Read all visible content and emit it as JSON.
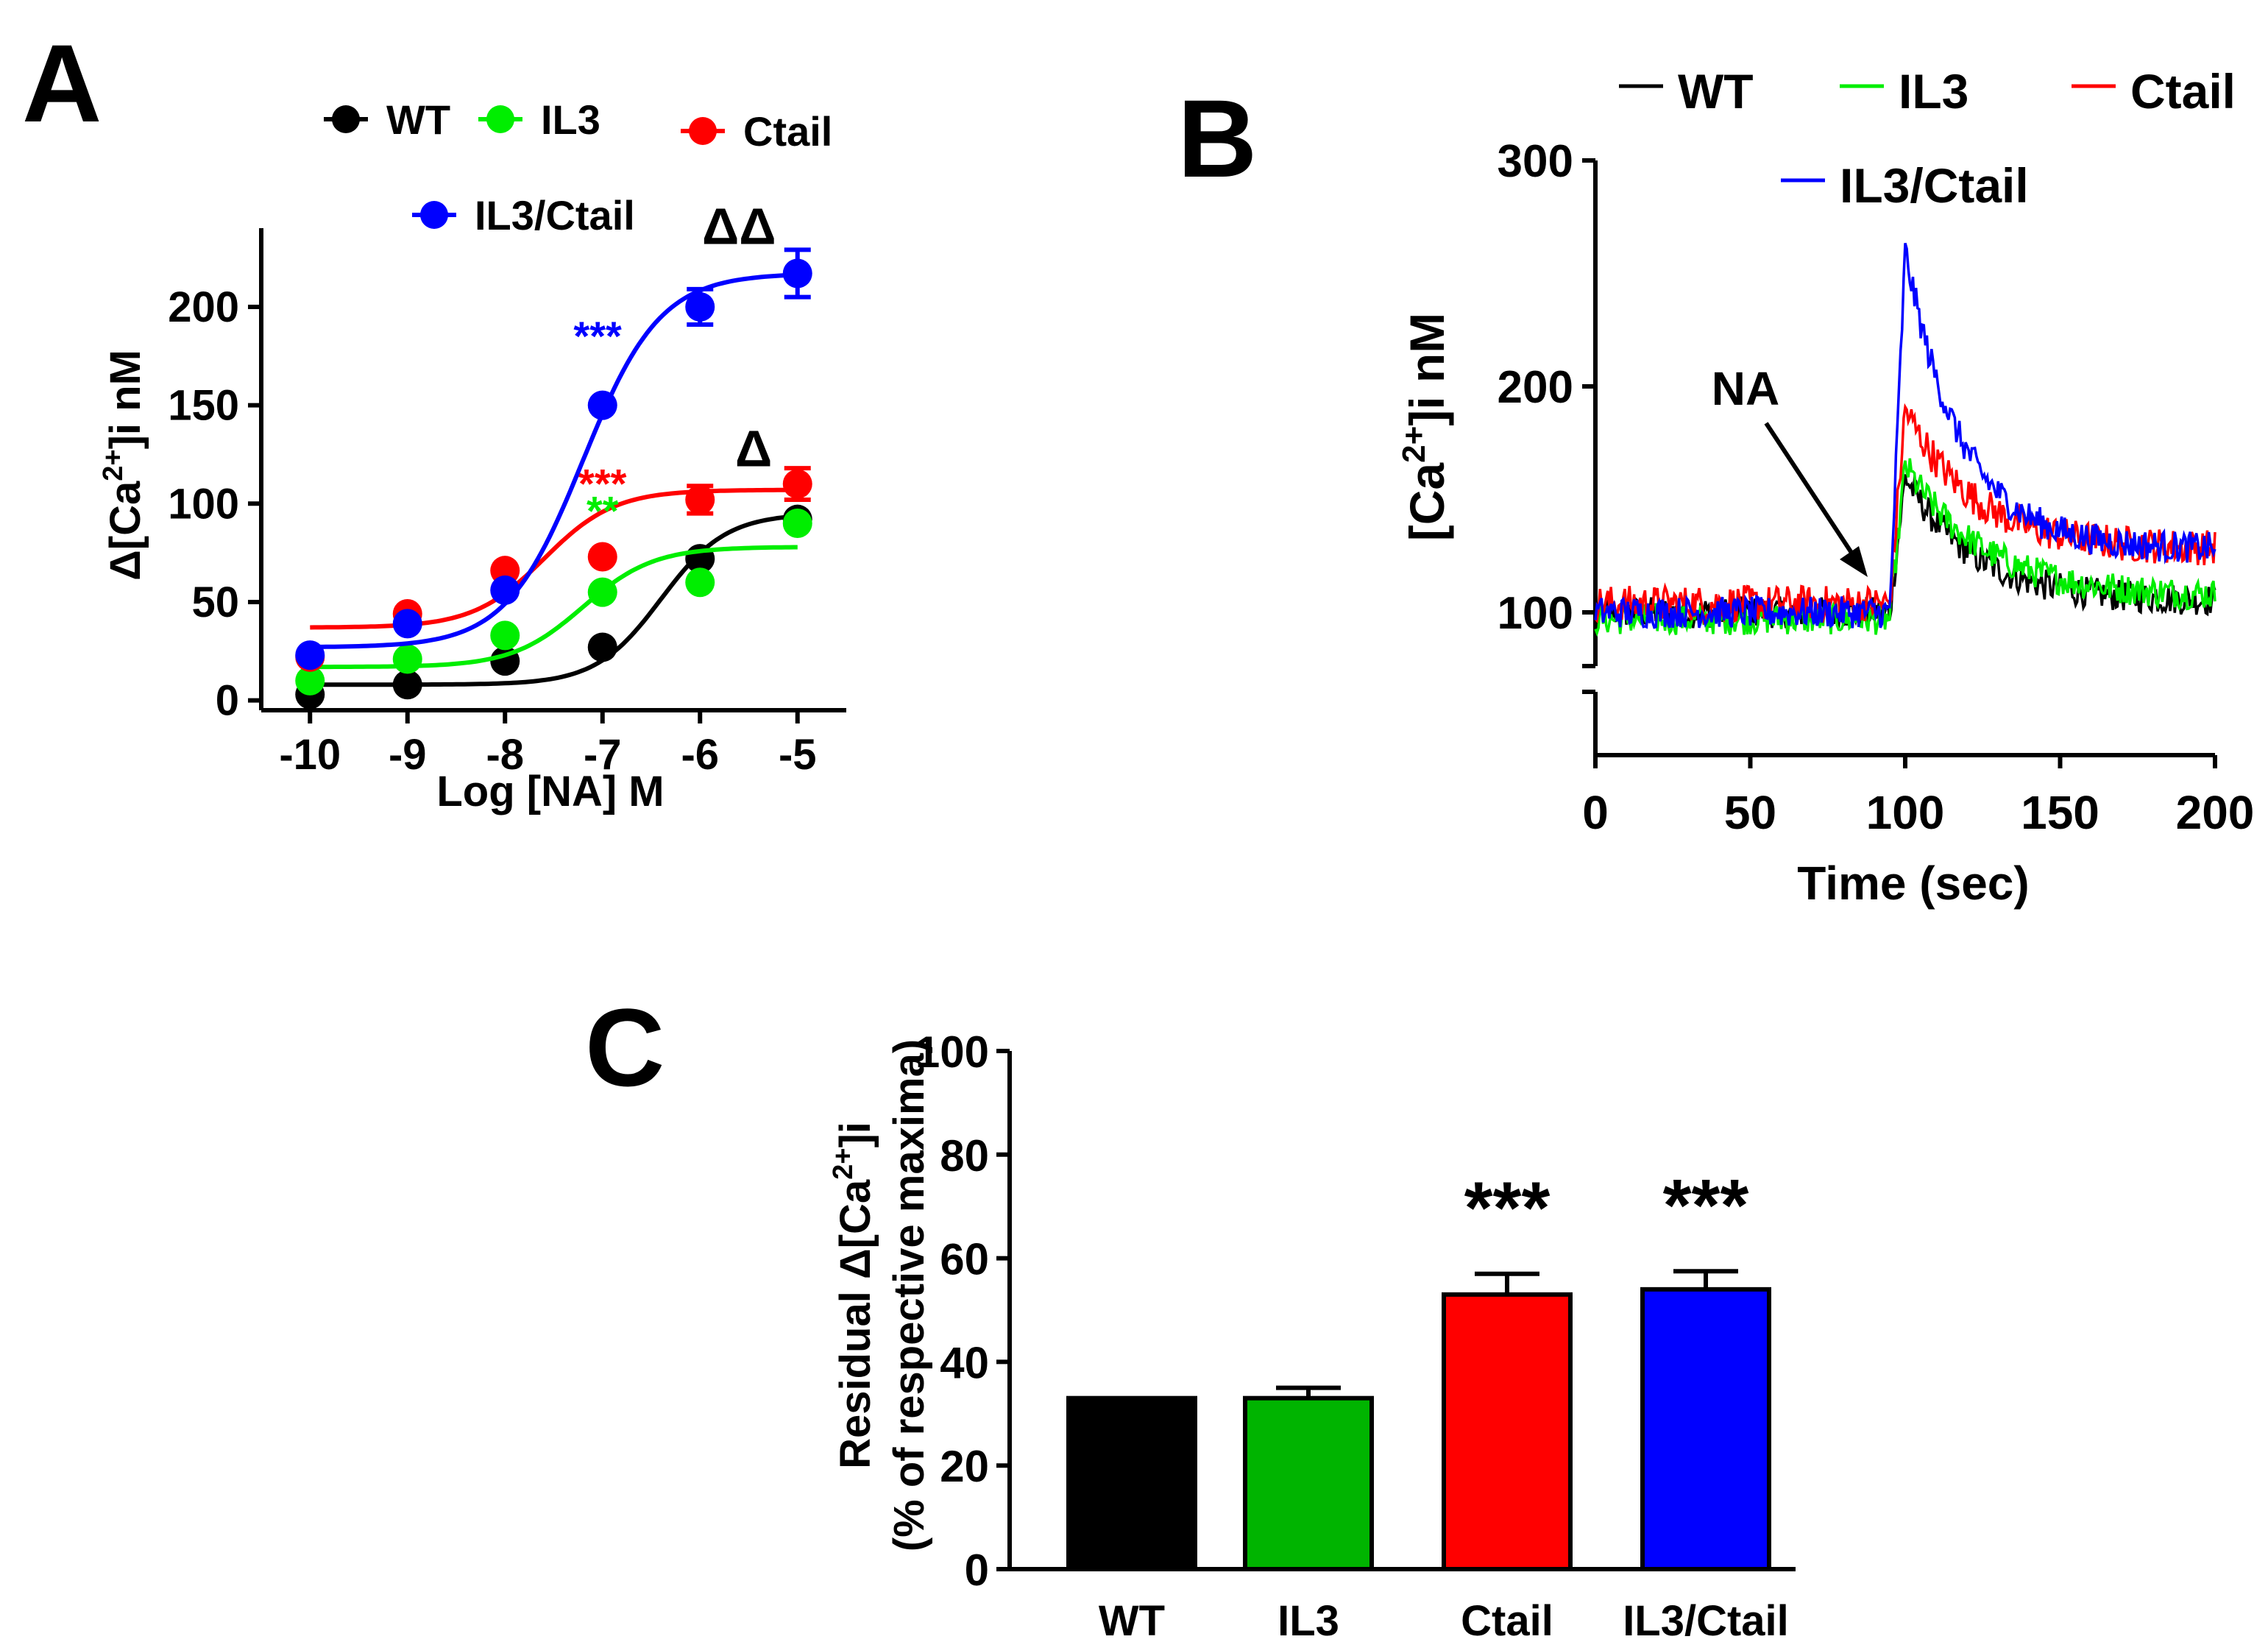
{
  "figure": {
    "panels": [
      "A",
      "B",
      "C"
    ]
  },
  "chart_data": [
    {
      "panel": "A",
      "type": "scatter",
      "fit": "sigmoidal concentration-response",
      "xlabel": "Log [NA] M",
      "ylabel": "Δ[Ca2+]i nM",
      "ylabel_parts": {
        "pre": "Δ[Ca",
        "sup": "2+",
        "post": "]i nM"
      },
      "xlim": [
        -10.5,
        -4.5
      ],
      "ylim": [
        -5,
        240
      ],
      "xticks": [
        -10,
        -9,
        -8,
        -7,
        -6,
        -5
      ],
      "xtick_labels": [
        "-10",
        "-9",
        "-8",
        "-7",
        "-6",
        "-5"
      ],
      "yticks": [
        0,
        50,
        100,
        150,
        200
      ],
      "ytick_labels": [
        "0",
        "50",
        "100",
        "150",
        "200"
      ],
      "series": [
        {
          "name": "WT",
          "color": "#000000",
          "x": [
            -10,
            -9,
            -8,
            -7,
            -6,
            -5
          ],
          "y": [
            3,
            8,
            20,
            27,
            72,
            92
          ],
          "err": [
            0,
            0,
            0,
            0,
            0,
            0
          ],
          "fit": {
            "bottom": 8,
            "top": 95,
            "logec50": -6.4,
            "hill": 1.3
          }
        },
        {
          "name": "IL3",
          "color": "#00ee00",
          "x": [
            -10,
            -9,
            -8,
            -7,
            -6,
            -5
          ],
          "y": [
            10,
            21,
            33,
            55,
            60,
            90
          ],
          "err": [
            0,
            0,
            0,
            0,
            0,
            0
          ],
          "fit": {
            "bottom": 17,
            "top": 78,
            "logec50": -7.2,
            "hill": 1.2
          }
        },
        {
          "name": "Ctail",
          "color": "#ff0000",
          "x": [
            -10,
            -9,
            -8,
            -7,
            -6,
            -5
          ],
          "y": [
            22,
            44,
            66,
            73,
            102,
            110
          ],
          "err": [
            0,
            0,
            0,
            0,
            7,
            8
          ],
          "fit": {
            "bottom": 37,
            "top": 107,
            "logec50": -7.6,
            "hill": 1.2
          }
        },
        {
          "name": "IL3/Ctail",
          "color": "#0000ff",
          "x": [
            -10,
            -9,
            -8,
            -7,
            -6,
            -5
          ],
          "y": [
            23,
            39,
            56,
            150,
            200,
            217
          ],
          "err": [
            0,
            0,
            0,
            0,
            9,
            12
          ],
          "fit": {
            "bottom": 27,
            "top": 217,
            "logec50": -7.2,
            "hill": 1.1
          }
        }
      ],
      "legend": [
        "WT",
        "IL3",
        "Ctail",
        "IL3/Ctail"
      ],
      "annotations": [
        {
          "text": "***",
          "color": "#0000ff",
          "x": -7.05,
          "y": 178
        },
        {
          "text": "***",
          "color": "#ff0000",
          "x": -7.0,
          "y": 103
        },
        {
          "text": "**",
          "color": "#00ee00",
          "x": -7.0,
          "y": 89
        },
        {
          "text": "ΔΔ",
          "color": "#000000",
          "x": -5.6,
          "y": 232
        },
        {
          "text": "Δ",
          "color": "#000000",
          "x": -5.45,
          "y": 119
        }
      ]
    },
    {
      "panel": "B",
      "type": "line",
      "xlabel": "Time (sec)",
      "ylabel": "[Ca2+]i nM",
      "ylabel_parts": {
        "pre": "[Ca",
        "sup": "2+",
        "post": "]i nM"
      },
      "xlim": [
        0,
        200
      ],
      "ylim": [
        50,
        300
      ],
      "axis_break": [
        75,
        85
      ],
      "xticks": [
        0,
        50,
        100,
        150,
        200
      ],
      "xtick_labels": [
        "0",
        "50",
        "100",
        "150",
        "200"
      ],
      "yticks": [
        100,
        200,
        300
      ],
      "ytick_labels": [
        "100",
        "200",
        "300"
      ],
      "stimulus": {
        "label": "NA",
        "time": 95
      },
      "series": [
        {
          "name": "WT",
          "color": "#000000",
          "baseline": 100,
          "onset": 95,
          "peak": 160,
          "plateau": 105,
          "decay_tau": 22,
          "noise": 7
        },
        {
          "name": "IL3",
          "color": "#00ee00",
          "baseline": 97,
          "onset": 95,
          "peak": 165,
          "plateau": 107,
          "decay_tau": 25,
          "noise": 7
        },
        {
          "name": "Ctail",
          "color": "#ff0000",
          "baseline": 104,
          "onset": 95,
          "peak": 190,
          "plateau": 128,
          "decay_tau": 22,
          "noise": 8
        },
        {
          "name": "IL3/Ctail",
          "color": "#0000ff",
          "baseline": 100,
          "onset": 95,
          "peak": 260,
          "plateau": 128,
          "decay_tau": 18,
          "noise": 7
        }
      ],
      "legend": [
        "WT",
        "IL3",
        "Ctail",
        "IL3/Ctail"
      ]
    },
    {
      "panel": "C",
      "type": "bar",
      "categories": [
        "WT",
        "IL3",
        "Ctail",
        "IL3/Ctail"
      ],
      "values": [
        33,
        33,
        53,
        54
      ],
      "errors": [
        0,
        2,
        4,
        3.5
      ],
      "colors": [
        "#000000",
        "#00b400",
        "#ff0000",
        "#0000ff"
      ],
      "significance": [
        "",
        "",
        "***",
        "***"
      ],
      "ylabel_line1": "Residual Δ[Ca2+]i",
      "ylabel_line1_parts": {
        "pre": "Residual Δ[Ca",
        "sup": "2+",
        "post": "]i"
      },
      "ylabel_line2": "(% of respective maxima)",
      "ylim": [
        0,
        100
      ],
      "yticks": [
        0,
        20,
        40,
        60,
        80,
        100
      ],
      "ytick_labels": [
        "0",
        "20",
        "40",
        "60",
        "80",
        "100"
      ]
    }
  ]
}
